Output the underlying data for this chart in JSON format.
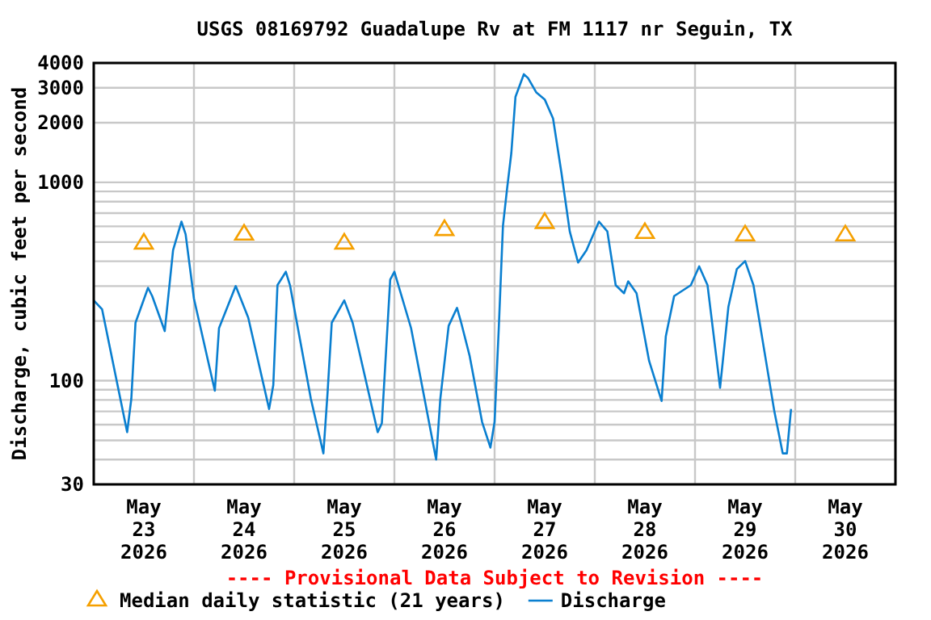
{
  "chart_data": {
    "type": "line",
    "title": "USGS 08169792 Guadalupe Rv at FM 1117 nr Seguin, TX",
    "ylabel": "Discharge, cubic feet per second",
    "annotations": [
      "---- Provisional Data Subject to Revision ----"
    ],
    "log": "y",
    "grid": true,
    "legend": "bottom",
    "xlim": [
      "2026-05-23T00:00",
      "2026-05-31T00:00"
    ],
    "xticks": [
      {
        "value": "2026-05-23T00:00",
        "label": null
      },
      {
        "value": "2026-05-23T12:00",
        "label": "May\n23\n2026"
      },
      {
        "value": "2026-05-24T00:00",
        "label": null
      },
      {
        "value": "2026-05-24T12:00",
        "label": "May\n24\n2026"
      },
      {
        "value": "2026-05-25T00:00",
        "label": null
      },
      {
        "value": "2026-05-25T12:00",
        "label": "May\n25\n2026"
      },
      {
        "value": "2026-05-26T00:00",
        "label": null
      },
      {
        "value": "2026-05-26T12:00",
        "label": "May\n26\n2026"
      },
      {
        "value": "2026-05-27T00:00",
        "label": null
      },
      {
        "value": "2026-05-27T12:00",
        "label": "May\n27\n2026"
      },
      {
        "value": "2026-05-28T00:00",
        "label": null
      },
      {
        "value": "2026-05-28T12:00",
        "label": "May\n28\n2026"
      },
      {
        "value": "2026-05-29T00:00",
        "label": null
      },
      {
        "value": "2026-05-29T12:00",
        "label": "May\n29\n2026"
      },
      {
        "value": "2026-05-30T00:00",
        "label": null
      },
      {
        "value": "2026-05-30T12:00",
        "label": "May\n30\n2026"
      },
      {
        "value": "2026-05-31T00:00",
        "label": null
      }
    ],
    "ylim": [
      30,
      4000
    ],
    "yticks": [
      30,
      {
        "value": 40,
        "label": null
      },
      {
        "value": 50,
        "label": null
      },
      {
        "value": 60,
        "label": null
      },
      {
        "value": 70,
        "label": null
      },
      {
        "value": 80,
        "label": null
      },
      {
        "value": 90,
        "label": null
      },
      100,
      {
        "value": 200,
        "label": null
      },
      {
        "value": 300,
        "label": null
      },
      {
        "value": 400,
        "label": null
      },
      {
        "value": 500,
        "label": null
      },
      {
        "value": 600,
        "label": null
      },
      {
        "value": 700,
        "label": null
      },
      {
        "value": 800,
        "label": null
      },
      {
        "value": 900,
        "label": null
      },
      1000,
      2000,
      3000,
      4000
    ],
    "series": [
      {
        "name": "Median daily statistic (21 years)",
        "type": "scatter",
        "marker": "triangle",
        "color": "#f5a000",
        "x": [
          "2026-05-23T12:00",
          "2026-05-24T12:00",
          "2026-05-25T12:00",
          "2026-05-26T12:00",
          "2026-05-27T12:00",
          "2026-05-28T12:00",
          "2026-05-29T12:00",
          "2026-05-30T12:00"
        ],
        "values": [
          500,
          555,
          500,
          585,
          635,
          565,
          550,
          550
        ]
      },
      {
        "name": "Discharge",
        "color": "#0a7fd0",
        "x": [
          "2026-05-23T00:00",
          "2026-05-23T02:00",
          "2026-05-23T08:00",
          "2026-05-23T09:00",
          "2026-05-23T10:00",
          "2026-05-23T13:00",
          "2026-05-23T14:00",
          "2026-05-23T17:00",
          "2026-05-23T19:00",
          "2026-05-23T21:00",
          "2026-05-23T22:00",
          "2026-05-24T00:00",
          "2026-05-24T05:00",
          "2026-05-24T06:00",
          "2026-05-24T10:00",
          "2026-05-24T13:00",
          "2026-05-24T18:00",
          "2026-05-24T19:00",
          "2026-05-24T20:00",
          "2026-05-24T22:00",
          "2026-05-24T23:00",
          "2026-05-25T04:00",
          "2026-05-25T07:00",
          "2026-05-25T08:00",
          "2026-05-25T09:00",
          "2026-05-25T12:00",
          "2026-05-25T14:00",
          "2026-05-25T20:00",
          "2026-05-25T21:00",
          "2026-05-25T23:00",
          "2026-05-26T00:00",
          "2026-05-26T04:00",
          "2026-05-26T10:00",
          "2026-05-26T11:00",
          "2026-05-26T13:00",
          "2026-05-26T15:00",
          "2026-05-26T16:00",
          "2026-05-26T18:00",
          "2026-05-26T21:00",
          "2026-05-26T23:00",
          "2026-05-27T00:00",
          "2026-05-27T01:00",
          "2026-05-27T02:00",
          "2026-05-27T03:00",
          "2026-05-27T04:00",
          "2026-05-27T05:00",
          "2026-05-27T07:00",
          "2026-05-27T08:00",
          "2026-05-27T10:00",
          "2026-05-27T12:00",
          "2026-05-27T14:00",
          "2026-05-27T16:00",
          "2026-05-27T18:00",
          "2026-05-27T20:00",
          "2026-05-27T22:00",
          "2026-05-28T01:00",
          "2026-05-28T03:00",
          "2026-05-28T05:00",
          "2026-05-28T07:00",
          "2026-05-28T08:00",
          "2026-05-28T10:00",
          "2026-05-28T13:00",
          "2026-05-28T16:00",
          "2026-05-28T17:00",
          "2026-05-28T19:00",
          "2026-05-28T23:00",
          "2026-05-29T01:00",
          "2026-05-29T03:00",
          "2026-05-29T06:00",
          "2026-05-29T08:00",
          "2026-05-29T10:00",
          "2026-05-29T12:00",
          "2026-05-29T14:00",
          "2026-05-29T19:00",
          "2026-05-29T21:00",
          "2026-05-29T22:00",
          "2026-05-29T23:00"
        ],
        "values": [
          254,
          229,
          55,
          81,
          196,
          294,
          267,
          178,
          455,
          634,
          548,
          259,
          89,
          184,
          300,
          208,
          72,
          95,
          303,
          354,
          303,
          81,
          43,
          87,
          196,
          254,
          196,
          55,
          61,
          323,
          354,
          184,
          40,
          81,
          189,
          233,
          196,
          134,
          62,
          46,
          62,
          184,
          603,
          933,
          1400,
          2700,
          3510,
          3360,
          2840,
          2620,
          2100,
          1120,
          566,
          394,
          455,
          634,
          566,
          303,
          276,
          317,
          276,
          126,
          79,
          167,
          267,
          303,
          377,
          303,
          92,
          236,
          365,
          401,
          303,
          70,
          43,
          43,
          72
        ]
      }
    ]
  }
}
